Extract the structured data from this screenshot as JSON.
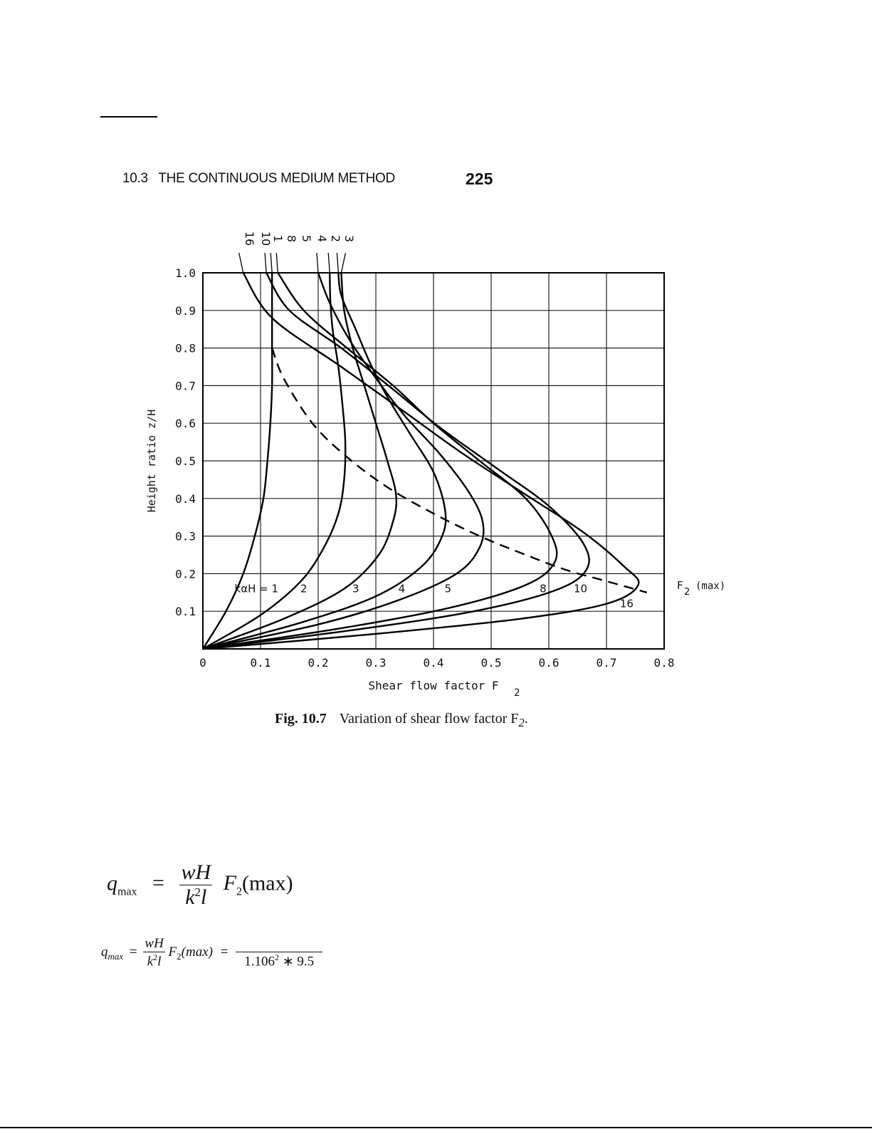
{
  "header": {
    "section": "10.3   THE CONTINUOUS MEDIUM METHOD",
    "page_number": "225"
  },
  "figure": {
    "caption_label": "Fig. 10.7",
    "caption_text": "Variation of shear flow factor F",
    "caption_sub": "2",
    "caption_end": "."
  },
  "chart_data": {
    "type": "line",
    "xlabel": "Shear flow factor F",
    "xlabel_sub": "2",
    "ylabel": "Height ratio z/H",
    "xlim": [
      0,
      0.8
    ],
    "ylim": [
      0,
      1.0
    ],
    "grid": true,
    "x_ticks": [
      "0",
      "0.1",
      "0.2",
      "0.3",
      "0.4",
      "0.5",
      "0.6",
      "0.7",
      "0.8"
    ],
    "y_ticks": [
      "1.0",
      "0.9",
      "0.8",
      "0.7",
      "0.6",
      "0.5",
      "0.4",
      "0.3",
      "0.2",
      "0.1"
    ],
    "family_label": "kαH = 1",
    "top_labels": [
      "16",
      "10",
      "1",
      "8",
      "5",
      "4",
      "2",
      "3"
    ],
    "series": [
      {
        "name": "1",
        "label": "1",
        "points": [
          [
            0,
            0
          ],
          [
            0.04,
            0.1
          ],
          [
            0.07,
            0.2
          ],
          [
            0.09,
            0.3
          ],
          [
            0.105,
            0.4
          ],
          [
            0.112,
            0.5
          ],
          [
            0.117,
            0.6
          ],
          [
            0.12,
            0.7
          ],
          [
            0.12,
            0.8
          ],
          [
            0.12,
            0.9
          ],
          [
            0.12,
            1.0
          ]
        ]
      },
      {
        "name": "2",
        "label": "2",
        "points": [
          [
            0,
            0
          ],
          [
            0.1,
            0.09
          ],
          [
            0.17,
            0.18
          ],
          [
            0.21,
            0.27
          ],
          [
            0.235,
            0.36
          ],
          [
            0.245,
            0.45
          ],
          [
            0.247,
            0.55
          ],
          [
            0.242,
            0.65
          ],
          [
            0.235,
            0.75
          ],
          [
            0.225,
            0.85
          ],
          [
            0.221,
            0.93
          ],
          [
            0.22,
            1.0
          ]
        ]
      },
      {
        "name": "3",
        "label": "3",
        "points": [
          [
            0,
            0
          ],
          [
            0.14,
            0.08
          ],
          [
            0.245,
            0.16
          ],
          [
            0.305,
            0.25
          ],
          [
            0.33,
            0.34
          ],
          [
            0.335,
            0.41
          ],
          [
            0.32,
            0.5
          ],
          [
            0.3,
            0.6
          ],
          [
            0.28,
            0.7
          ],
          [
            0.26,
            0.8
          ],
          [
            0.245,
            0.9
          ],
          [
            0.24,
            1.0
          ]
        ]
      },
      {
        "name": "4",
        "label": "4",
        "points": [
          [
            0,
            0
          ],
          [
            0.17,
            0.07
          ],
          [
            0.3,
            0.14
          ],
          [
            0.38,
            0.22
          ],
          [
            0.415,
            0.3
          ],
          [
            0.42,
            0.37
          ],
          [
            0.4,
            0.47
          ],
          [
            0.36,
            0.57
          ],
          [
            0.32,
            0.67
          ],
          [
            0.29,
            0.76
          ],
          [
            0.265,
            0.85
          ],
          [
            0.24,
            0.94
          ],
          [
            0.235,
            1.0
          ]
        ]
      },
      {
        "name": "5",
        "label": "5",
        "points": [
          [
            0,
            0
          ],
          [
            0.2,
            0.065
          ],
          [
            0.34,
            0.13
          ],
          [
            0.44,
            0.2
          ],
          [
            0.48,
            0.27
          ],
          [
            0.485,
            0.34
          ],
          [
            0.46,
            0.42
          ],
          [
            0.41,
            0.52
          ],
          [
            0.35,
            0.62
          ],
          [
            0.3,
            0.72
          ],
          [
            0.255,
            0.82
          ],
          [
            0.22,
            0.92
          ],
          [
            0.2,
            1.0
          ]
        ]
      },
      {
        "name": "8",
        "label": "8",
        "points": [
          [
            0,
            0
          ],
          [
            0.24,
            0.055
          ],
          [
            0.43,
            0.11
          ],
          [
            0.56,
            0.17
          ],
          [
            0.61,
            0.23
          ],
          [
            0.605,
            0.3
          ],
          [
            0.56,
            0.4
          ],
          [
            0.48,
            0.5
          ],
          [
            0.4,
            0.6
          ],
          [
            0.33,
            0.7
          ],
          [
            0.25,
            0.8
          ],
          [
            0.175,
            0.9
          ],
          [
            0.13,
            1.0
          ]
        ]
      },
      {
        "name": "10",
        "label": "10",
        "points": [
          [
            0,
            0
          ],
          [
            0.26,
            0.05
          ],
          [
            0.47,
            0.1
          ],
          [
            0.61,
            0.155
          ],
          [
            0.665,
            0.21
          ],
          [
            0.66,
            0.28
          ],
          [
            0.6,
            0.38
          ],
          [
            0.51,
            0.48
          ],
          [
            0.41,
            0.59
          ],
          [
            0.33,
            0.69
          ],
          [
            0.24,
            0.8
          ],
          [
            0.15,
            0.9
          ],
          [
            0.11,
            1.0
          ]
        ]
      },
      {
        "name": "16",
        "label": "16",
        "points": [
          [
            0,
            0
          ],
          [
            0.3,
            0.04
          ],
          [
            0.55,
            0.08
          ],
          [
            0.7,
            0.12
          ],
          [
            0.755,
            0.17
          ],
          [
            0.73,
            0.22
          ],
          [
            0.66,
            0.31
          ],
          [
            0.56,
            0.41
          ],
          [
            0.45,
            0.52
          ],
          [
            0.35,
            0.63
          ],
          [
            0.24,
            0.75
          ],
          [
            0.12,
            0.88
          ],
          [
            0.07,
            1.0
          ]
        ]
      }
    ],
    "envelope": {
      "name": "F2 (max)",
      "label": "F",
      "label_sub": "2",
      "label_suffix": " (max)",
      "style": "dashed",
      "points": [
        [
          0.12,
          0.8
        ],
        [
          0.14,
          0.72
        ],
        [
          0.19,
          0.6
        ],
        [
          0.25,
          0.51
        ],
        [
          0.32,
          0.43
        ],
        [
          0.4,
          0.36
        ],
        [
          0.48,
          0.3
        ],
        [
          0.56,
          0.25
        ],
        [
          0.63,
          0.21
        ],
        [
          0.7,
          0.18
        ],
        [
          0.77,
          0.15
        ]
      ]
    }
  },
  "equations": {
    "eq1_q": "q",
    "eq1_q_sub": "max",
    "eq1_eq": "=",
    "eq1_num": "wH",
    "eq1_den_k": "k",
    "eq1_den_exp": "2",
    "eq1_den_l": "l",
    "eq1_F": "F",
    "eq1_F_sub": "2",
    "eq1_arg": "(max)",
    "eq2_q": "q",
    "eq2_q_sub": "max",
    "eq2_eq": "=",
    "eq2_num": "wH",
    "eq2_den_k": "k",
    "eq2_den_exp": "2",
    "eq2_den_l": "l",
    "eq2_F": "F",
    "eq2_F_sub": "2",
    "eq2_arg": "(max)",
    "eq2_eq2": "=",
    "eq2_val_base": "1.106",
    "eq2_val_exp": "2",
    "eq2_val_rest": " ∗ 9.5"
  }
}
